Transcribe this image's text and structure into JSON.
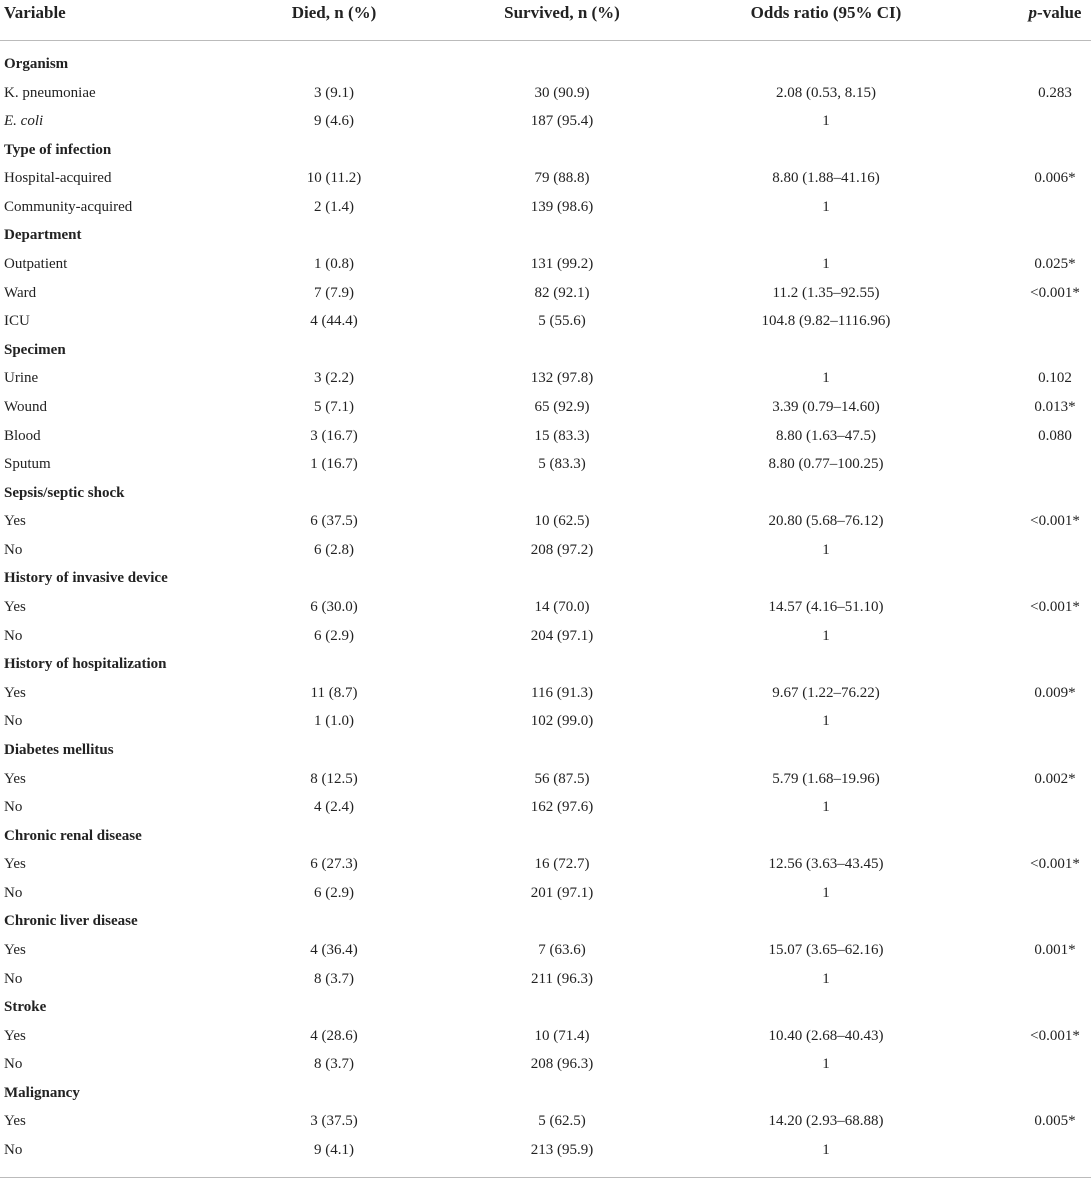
{
  "table": {
    "columns": [
      "Variable",
      "Died, n (%)",
      "Survived, n (%)",
      "Odds ratio (95% CI)",
      "p-value"
    ],
    "sections": [
      {
        "title": "Organism",
        "rows": [
          {
            "label": "K. pneumoniae",
            "died": "3 (9.1)",
            "survived": "30 (90.9)",
            "or": "2.08 (0.53, 8.15)",
            "p": "0.283"
          },
          {
            "label": "E. coli",
            "italic": true,
            "died": "9 (4.6)",
            "survived": "187 (95.4)",
            "or": "1"
          }
        ]
      },
      {
        "title": "Type of infection",
        "rows": [
          {
            "label": "Hospital-acquired",
            "died": "10 (11.2)",
            "survived": "79 (88.8)",
            "or": "8.80 (1.88–41.16)",
            "p": "0.006*"
          },
          {
            "label": "Community-acquired",
            "died": "2 (1.4)",
            "survived": "139 (98.6)",
            "or": "1"
          }
        ]
      },
      {
        "title": "Department",
        "rows": [
          {
            "label": "Outpatient",
            "died": "1 (0.8)",
            "survived": "131 (99.2)",
            "or": "1",
            "p": "0.025*"
          },
          {
            "label": "Ward",
            "died": "7 (7.9)",
            "survived": "82 (92.1)",
            "or": "11.2 (1.35–92.55)",
            "p": "<0.001*"
          },
          {
            "label": "ICU",
            "died": "4 (44.4)",
            "survived": "5 (55.6)",
            "or": "104.8 (9.82–1116.96)"
          }
        ]
      },
      {
        "title": "Specimen",
        "rows": [
          {
            "label": "Urine",
            "died": "3 (2.2)",
            "survived": "132 (97.8)",
            "or": "1",
            "p": "0.102"
          },
          {
            "label": "Wound",
            "died": "5 (7.1)",
            "survived": "65 (92.9)",
            "or": "3.39 (0.79–14.60)",
            "p": "0.013*"
          },
          {
            "label": "Blood",
            "died": "3 (16.7)",
            "survived": "15 (83.3)",
            "or": "8.80 (1.63–47.5)",
            "p": "0.080"
          },
          {
            "label": "Sputum",
            "died": "1 (16.7)",
            "survived": "5 (83.3)",
            "or": "8.80 (0.77–100.25)"
          }
        ]
      },
      {
        "title": "Sepsis/septic shock",
        "rows": [
          {
            "label": "Yes",
            "died": "6 (37.5)",
            "survived": "10 (62.5)",
            "or": "20.80 (5.68–76.12)",
            "p": "<0.001*"
          },
          {
            "label": "No",
            "died": "6 (2.8)",
            "survived": "208 (97.2)",
            "or": "1"
          }
        ]
      },
      {
        "title": "History of invasive device",
        "rows": [
          {
            "label": "Yes",
            "died": "6 (30.0)",
            "survived": "14 (70.0)",
            "or": "14.57 (4.16–51.10)",
            "p": "<0.001*"
          },
          {
            "label": "No",
            "died": "6 (2.9)",
            "survived": "204 (97.1)",
            "or": "1"
          }
        ]
      },
      {
        "title": "History of hospitalization",
        "rows": [
          {
            "label": "Yes",
            "died": "11 (8.7)",
            "survived": "116 (91.3)",
            "or": "9.67 (1.22–76.22)",
            "p": "0.009*"
          },
          {
            "label": "No",
            "died": "1 (1.0)",
            "survived": "102 (99.0)",
            "or": "1"
          }
        ]
      },
      {
        "title": "Diabetes mellitus",
        "rows": [
          {
            "label": "Yes",
            "died": "8 (12.5)",
            "survived": "56 (87.5)",
            "or": "5.79 (1.68–19.96)",
            "p": "0.002*"
          },
          {
            "label": "No",
            "died": "4 (2.4)",
            "survived": "162 (97.6)",
            "or": "1"
          }
        ]
      },
      {
        "title": "Chronic renal disease",
        "rows": [
          {
            "label": "Yes",
            "died": "6 (27.3)",
            "survived": "16 (72.7)",
            "or": "12.56 (3.63–43.45)",
            "p": "<0.001*"
          },
          {
            "label": "No",
            "died": "6 (2.9)",
            "survived": "201 (97.1)",
            "or": "1"
          }
        ]
      },
      {
        "title": "Chronic liver disease",
        "rows": [
          {
            "label": "Yes",
            "died": "4 (36.4)",
            "survived": "7 (63.6)",
            "or": "15.07 (3.65–62.16)",
            "p": "0.001*"
          },
          {
            "label": "No",
            "died": "8 (3.7)",
            "survived": "211 (96.3)",
            "or": "1"
          }
        ]
      },
      {
        "title": "Stroke",
        "rows": [
          {
            "label": "Yes",
            "died": "4 (28.6)",
            "survived": "10 (71.4)",
            "or": "10.40 (2.68–40.43)",
            "p": "<0.001*"
          },
          {
            "label": "No",
            "died": "8 (3.7)",
            "survived": "208 (96.3)",
            "or": "1"
          }
        ]
      },
      {
        "title": "Malignancy",
        "rows": [
          {
            "label": "Yes",
            "died": "3 (37.5)",
            "survived": "5 (62.5)",
            "or": "14.20 (2.93–68.88)",
            "p": "0.005*"
          },
          {
            "label": "No",
            "died": "9 (4.1)",
            "survived": "213 (95.9)",
            "or": "1"
          }
        ]
      }
    ]
  }
}
